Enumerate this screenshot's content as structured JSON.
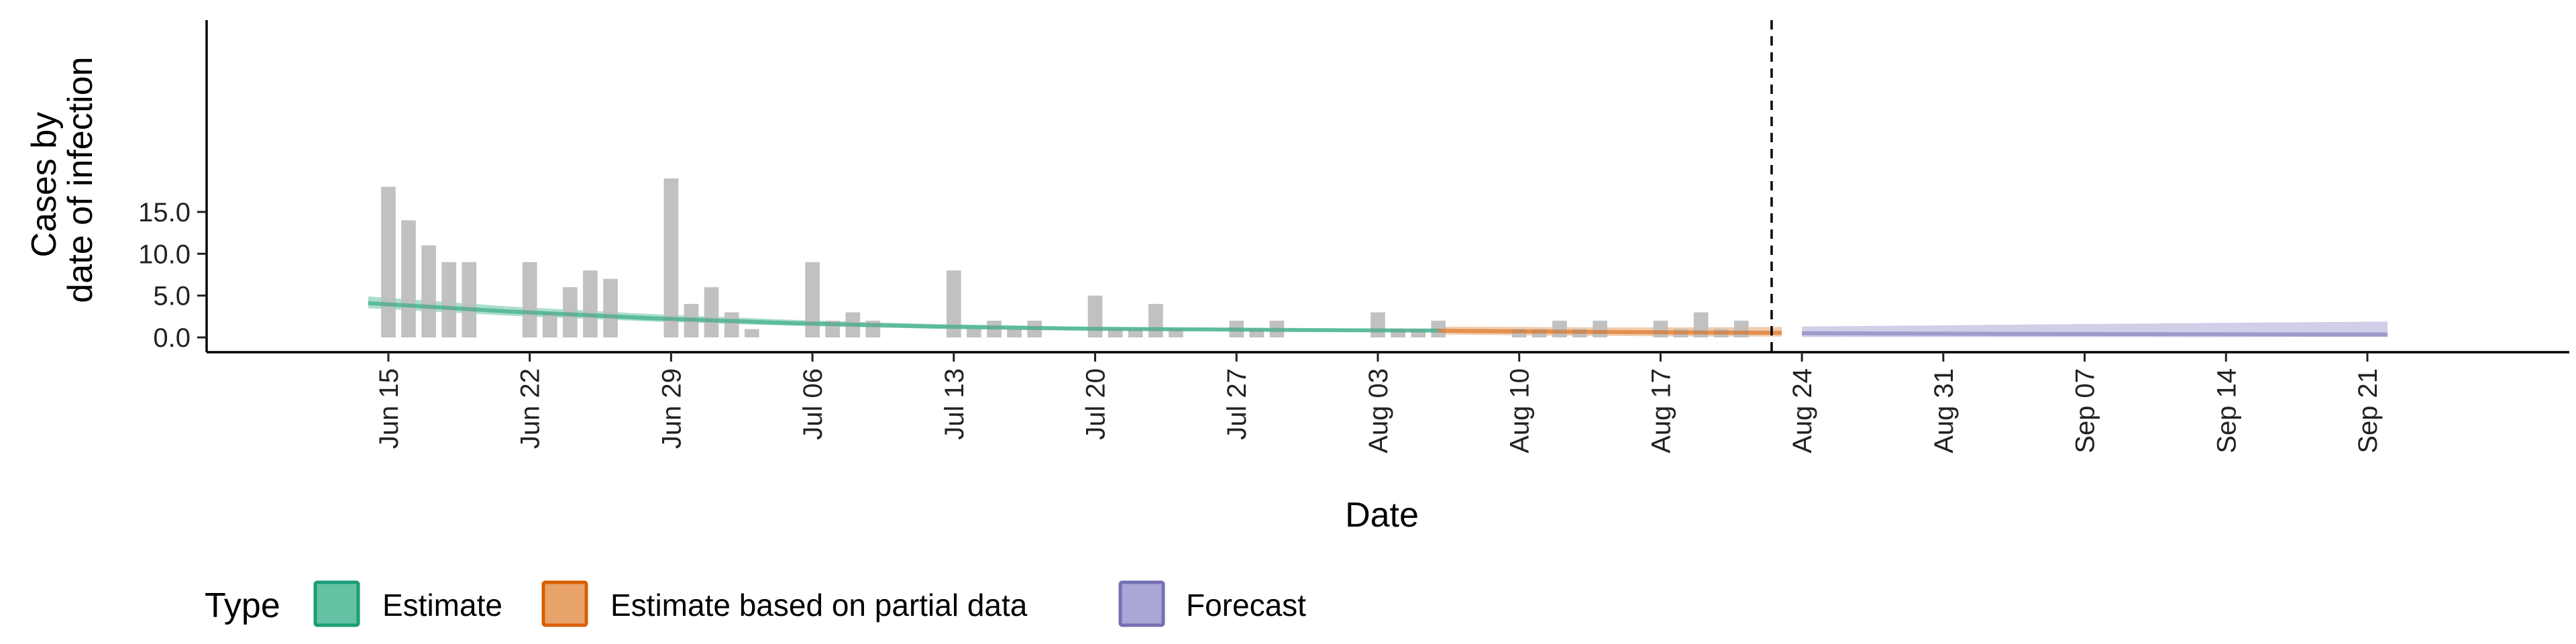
{
  "chart_data": {
    "type": "bar",
    "xlabel": "Date",
    "ylabel_lines": [
      "Cases by",
      "date of infection"
    ],
    "ylim": [
      0,
      20
    ],
    "y_ticks": [
      0,
      5,
      10,
      15
    ],
    "y_tick_labels": [
      "0.0",
      "5.0",
      "10.0",
      "15.0"
    ],
    "x_range": [
      "2020-06-06",
      "2020-10-01"
    ],
    "x_tick_dates": [
      "2020-06-15",
      "2020-06-22",
      "2020-06-29",
      "2020-07-06",
      "2020-07-13",
      "2020-07-20",
      "2020-07-27",
      "2020-08-03",
      "2020-08-10",
      "2020-08-17",
      "2020-08-24",
      "2020-08-31",
      "2020-09-07",
      "2020-09-14",
      "2020-09-21"
    ],
    "x_tick_labels": [
      "Jun 15",
      "Jun 22",
      "Jun 29",
      "Jul 06",
      "Jul 13",
      "Jul 20",
      "Jul 27",
      "Aug 03",
      "Aug 10",
      "Aug 17",
      "Aug 24",
      "Aug 31",
      "Sep 07",
      "Sep 14",
      "Sep 21"
    ],
    "forecast_start": "2020-08-23",
    "grid": false,
    "legend_placement": "bottom-left",
    "bars": {
      "color": "#bebebe",
      "points": [
        [
          "2020-06-15",
          18
        ],
        [
          "2020-06-16",
          14
        ],
        [
          "2020-06-17",
          11
        ],
        [
          "2020-06-18",
          9
        ],
        [
          "2020-06-19",
          9
        ],
        [
          "2020-06-22",
          9
        ],
        [
          "2020-06-23",
          3
        ],
        [
          "2020-06-24",
          6
        ],
        [
          "2020-06-25",
          8
        ],
        [
          "2020-06-26",
          7
        ],
        [
          "2020-06-29",
          19
        ],
        [
          "2020-06-30",
          4
        ],
        [
          "2020-07-01",
          6
        ],
        [
          "2020-07-02",
          3
        ],
        [
          "2020-07-03",
          1
        ],
        [
          "2020-07-06",
          9
        ],
        [
          "2020-07-07",
          2
        ],
        [
          "2020-07-08",
          3
        ],
        [
          "2020-07-09",
          2
        ],
        [
          "2020-07-13",
          8
        ],
        [
          "2020-07-14",
          1
        ],
        [
          "2020-07-15",
          2
        ],
        [
          "2020-07-16",
          1
        ],
        [
          "2020-07-17",
          2
        ],
        [
          "2020-07-20",
          5
        ],
        [
          "2020-07-21",
          1
        ],
        [
          "2020-07-22",
          1
        ],
        [
          "2020-07-23",
          4
        ],
        [
          "2020-07-24",
          1
        ],
        [
          "2020-07-27",
          2
        ],
        [
          "2020-07-28",
          1
        ],
        [
          "2020-07-29",
          2
        ],
        [
          "2020-08-03",
          3
        ],
        [
          "2020-08-04",
          1
        ],
        [
          "2020-08-05",
          1
        ],
        [
          "2020-08-06",
          2
        ],
        [
          "2020-08-10",
          1
        ],
        [
          "2020-08-11",
          1
        ],
        [
          "2020-08-12",
          2
        ],
        [
          "2020-08-13",
          1
        ],
        [
          "2020-08-14",
          2
        ],
        [
          "2020-08-17",
          2
        ],
        [
          "2020-08-18",
          1
        ],
        [
          "2020-08-19",
          3
        ],
        [
          "2020-08-20",
          1
        ],
        [
          "2020-08-21",
          2
        ]
      ]
    },
    "series": [
      {
        "name": "Estimate",
        "color": "#1b9e77",
        "fill": "#66c2a5",
        "x": [
          "2020-06-14",
          "2020-06-21",
          "2020-06-28",
          "2020-07-05",
          "2020-07-12",
          "2020-07-19",
          "2020-07-26",
          "2020-08-02",
          "2020-08-06"
        ],
        "median": [
          4.1,
          3.1,
          2.3,
          1.7,
          1.3,
          1.05,
          0.95,
          0.85,
          0.82
        ],
        "lower": [
          3.5,
          2.6,
          1.9,
          1.4,
          1.05,
          0.85,
          0.75,
          0.65,
          0.62
        ],
        "upper": [
          4.9,
          3.7,
          2.8,
          2.1,
          1.6,
          1.3,
          1.15,
          1.05,
          1.02
        ]
      },
      {
        "name": "Estimate based on partial data",
        "color": "#d95f02",
        "fill": "#e8a36a",
        "x": [
          "2020-08-06",
          "2020-08-10",
          "2020-08-14",
          "2020-08-18",
          "2020-08-23"
        ],
        "median": [
          0.8,
          0.72,
          0.65,
          0.6,
          0.55
        ],
        "lower": [
          0.35,
          0.25,
          0.18,
          0.12,
          0.1
        ],
        "upper": [
          1.3,
          1.25,
          1.2,
          1.2,
          1.25
        ]
      },
      {
        "name": "Forecast",
        "color": "#7570b3",
        "fill": "#aaa6d6",
        "x": [
          "2020-08-24",
          "2020-09-07",
          "2020-09-22"
        ],
        "median": [
          0.5,
          0.4,
          0.35
        ],
        "lower": [
          0.05,
          0.05,
          0.05
        ],
        "upper": [
          1.3,
          1.6,
          1.9
        ]
      }
    ]
  },
  "legend": {
    "title": "Type",
    "items": [
      {
        "label": "Estimate",
        "color": "#1b9e77",
        "fill": "#66c2a5"
      },
      {
        "label": "Estimate based on partial data",
        "color": "#d95f02",
        "fill": "#e8a36a"
      },
      {
        "label": "Forecast",
        "color": "#7570b3",
        "fill": "#aaa6d6"
      }
    ]
  }
}
